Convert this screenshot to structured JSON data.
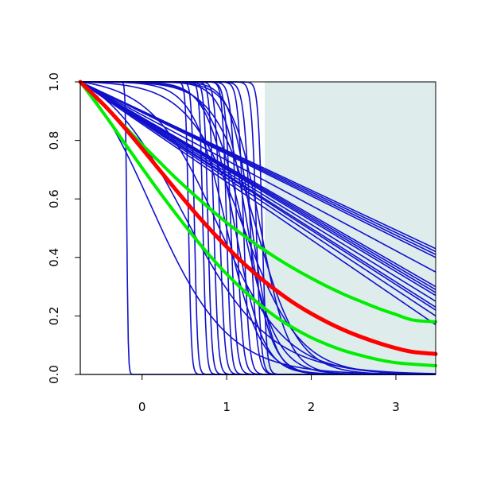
{
  "chart_data": {
    "type": "line",
    "xlim": [
      -0.73,
      3.47
    ],
    "ylim": [
      0,
      1
    ],
    "x_ticks": [
      "0",
      "1",
      "2",
      "3"
    ],
    "x_tick_values": [
      0,
      1,
      2,
      3
    ],
    "y_ticks": [
      "0.0",
      "0.2",
      "0.4",
      "0.6",
      "0.8",
      "1.0"
    ],
    "y_tick_values": [
      0,
      0.2,
      0.4,
      0.6,
      0.8,
      1.0
    ],
    "grid": false,
    "shaded_region": {
      "x_start": 1.45,
      "x_end": 3.47,
      "color": "#deecec"
    },
    "colors": {
      "blue": "#1111cc",
      "red": "#ff0000",
      "green": "#00ee00"
    },
    "start_x": -0.73,
    "curve_x": [
      -0.73,
      -0.6,
      -0.4,
      -0.2,
      0,
      0.2,
      0.4,
      0.6,
      0.8,
      1,
      1.2,
      1.4,
      1.6,
      1.8,
      2,
      2.2,
      2.4,
      2.6,
      2.8,
      3,
      3.2,
      3.47
    ],
    "highlighted_series": [
      {
        "color": "red",
        "width": 5,
        "y": [
          1.0,
          0.964,
          0.906,
          0.841,
          0.772,
          0.701,
          0.631,
          0.562,
          0.497,
          0.436,
          0.38,
          0.329,
          0.284,
          0.243,
          0.208,
          0.177,
          0.15,
          0.127,
          0.107,
          0.09,
          0.077,
          0.07
        ]
      },
      {
        "color": "green",
        "width": 4,
        "y": [
          1.0,
          0.963,
          0.906,
          0.846,
          0.786,
          0.728,
          0.671,
          0.618,
          0.567,
          0.519,
          0.475,
          0.434,
          0.396,
          0.361,
          0.329,
          0.299,
          0.272,
          0.248,
          0.225,
          0.205,
          0.186,
          0.18
        ]
      },
      {
        "color": "green",
        "width": 4,
        "y": [
          1.0,
          0.95,
          0.871,
          0.788,
          0.706,
          0.626,
          0.549,
          0.475,
          0.406,
          0.343,
          0.287,
          0.237,
          0.193,
          0.157,
          0.126,
          0.101,
          0.08,
          0.064,
          0.05,
          0.04,
          0.035,
          0.03
        ]
      }
    ],
    "linear_series": [
      {
        "color": "blue",
        "y_at_end": 0.43
      },
      {
        "color": "blue",
        "y_at_end": 0.42
      },
      {
        "color": "blue",
        "y_at_end": 0.41
      },
      {
        "color": "blue",
        "y_at_end": 0.4
      },
      {
        "color": "blue",
        "y_at_end": 0.35
      },
      {
        "color": "blue",
        "y_at_end": 0.3
      },
      {
        "color": "blue",
        "y_at_end": 0.29
      },
      {
        "color": "blue",
        "y_at_end": 0.28
      },
      {
        "color": "blue",
        "y_at_end": 0.27
      },
      {
        "color": "blue",
        "y_at_end": 0.25
      },
      {
        "color": "blue",
        "y_at_end": 0.23
      },
      {
        "color": "blue",
        "y_at_end": 0.22
      },
      {
        "color": "blue",
        "y_at_end": 0.2
      },
      {
        "color": "blue",
        "y_at_end": 0.17
      }
    ],
    "step_series": [
      {
        "color": "blue",
        "midpoint": -0.18,
        "steepness": 120
      },
      {
        "color": "blue",
        "midpoint": 0.55,
        "steepness": 60
      },
      {
        "color": "blue",
        "midpoint": 0.62,
        "steepness": 55
      },
      {
        "color": "blue",
        "midpoint": 0.72,
        "steepness": 50
      },
      {
        "color": "blue",
        "midpoint": 0.78,
        "steepness": 45
      },
      {
        "color": "blue",
        "midpoint": 0.85,
        "steepness": 40
      },
      {
        "color": "blue",
        "midpoint": 0.92,
        "steepness": 35
      },
      {
        "color": "blue",
        "midpoint": 1.0,
        "steepness": 40
      },
      {
        "color": "blue",
        "midpoint": 1.05,
        "steepness": 30
      },
      {
        "color": "blue",
        "midpoint": 1.12,
        "steepness": 28
      },
      {
        "color": "blue",
        "midpoint": 1.2,
        "steepness": 30
      },
      {
        "color": "blue",
        "midpoint": 1.28,
        "steepness": 25
      },
      {
        "color": "blue",
        "midpoint": 1.35,
        "steepness": 35
      },
      {
        "color": "blue",
        "midpoint": 1.42,
        "steepness": 40
      }
    ],
    "ramp_series": [
      {
        "color": "blue",
        "midpoint": 1.1,
        "steepness": 6
      },
      {
        "color": "blue",
        "midpoint": 1.2,
        "steepness": 5
      },
      {
        "color": "blue",
        "midpoint": 1.25,
        "steepness": 7
      },
      {
        "color": "blue",
        "midpoint": 1.3,
        "steepness": 8
      },
      {
        "color": "blue",
        "midpoint": 1.0,
        "steepness": 5
      },
      {
        "color": "blue",
        "midpoint": 1.35,
        "steepness": 4
      },
      {
        "color": "blue",
        "midpoint": 1.4,
        "steepness": 6
      }
    ],
    "decay_series": [
      {
        "color": "blue",
        "midpoint": 0.1,
        "steepness": 2.2
      },
      {
        "color": "blue",
        "midpoint": 0.5,
        "steepness": 2.0
      },
      {
        "color": "blue",
        "midpoint": 0.9,
        "steepness": 2.5
      },
      {
        "color": "blue",
        "midpoint": 1.2,
        "steepness": 3.0
      }
    ]
  }
}
